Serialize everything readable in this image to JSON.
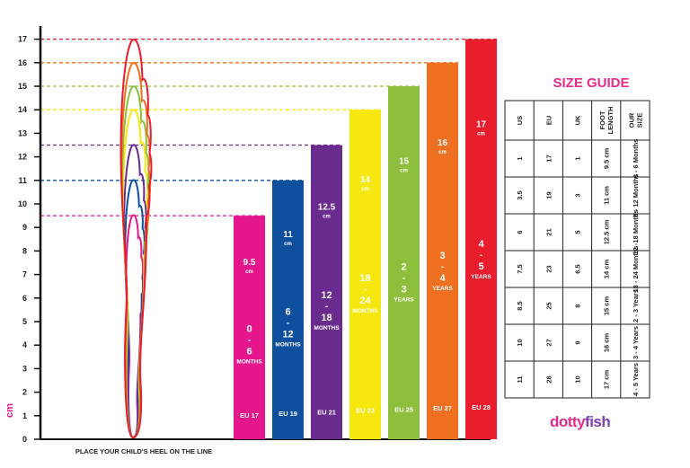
{
  "chart_data": {
    "type": "bar",
    "ylabel": "cm",
    "ylim": [
      0,
      17
    ],
    "yticks": [
      0,
      1,
      2,
      3,
      4,
      5,
      6,
      7,
      8,
      9,
      10,
      11,
      12,
      13,
      14,
      15,
      16,
      17
    ],
    "footer": "PLACE YOUR CHILD'S HEEL ON THE LINE",
    "bars": [
      {
        "value": 9.5,
        "cm_label": "9.5",
        "unit": "cm",
        "age": [
          "0",
          "-",
          "6"
        ],
        "age_unit": "MONTHS",
        "eu": "EU 17",
        "color": "#e5168b"
      },
      {
        "value": 11,
        "cm_label": "11",
        "unit": "cm",
        "age": [
          "6",
          "-",
          "12"
        ],
        "age_unit": "MONTHS",
        "eu": "EU 19",
        "color": "#0d4f9e"
      },
      {
        "value": 12.5,
        "cm_label": "12.5",
        "unit": "cm",
        "age": [
          "12",
          "-",
          "18"
        ],
        "age_unit": "MONTHS",
        "eu": "EU 21",
        "color": "#6a2b8f"
      },
      {
        "value": 14,
        "cm_label": "14",
        "unit": "cm",
        "age": [
          "18",
          "-",
          "24"
        ],
        "age_unit": "MONTHS",
        "eu": "EU 23",
        "color": "#f6e80f"
      },
      {
        "value": 15,
        "cm_label": "15",
        "unit": "cm",
        "age": [
          "2",
          "-",
          "3"
        ],
        "age_unit": "YEARS",
        "eu": "EU 25",
        "color": "#8dbf3d"
      },
      {
        "value": 16,
        "cm_label": "16",
        "unit": "cm",
        "age": [
          "3",
          "-",
          "4"
        ],
        "age_unit": "YEARS",
        "eu": "EU 27",
        "color": "#f07022"
      },
      {
        "value": 17,
        "cm_label": "17",
        "unit": "cm",
        "age": [
          "4",
          "-",
          "5"
        ],
        "age_unit": "YEARS",
        "eu": "EU 28",
        "color": "#ea1d2c"
      }
    ],
    "reference_lines": [
      {
        "value": 17,
        "color": "#ea1d2c"
      },
      {
        "value": 16,
        "color": "#f07022"
      },
      {
        "value": 15,
        "color": "#8dbf3d"
      },
      {
        "value": 14,
        "color": "#f6e80f"
      },
      {
        "value": 12.5,
        "color": "#6a2b8f"
      },
      {
        "value": 11,
        "color": "#0d4f9e"
      },
      {
        "value": 9.5,
        "color": "#e5168b"
      }
    ]
  },
  "size_guide": {
    "title": "SIZE GUIDE",
    "rows": [
      {
        "header": "US",
        "values": [
          "1",
          "3.5",
          "6",
          "7.5",
          "8.5",
          "10",
          "11"
        ]
      },
      {
        "header": "EU",
        "values": [
          "17",
          "19",
          "21",
          "23",
          "25",
          "27",
          "28"
        ]
      },
      {
        "header": "UK",
        "values": [
          "1",
          "3",
          "5",
          "6.5",
          "8",
          "9",
          "10"
        ]
      },
      {
        "header": [
          "FOOT",
          "LENGTH"
        ],
        "values": [
          "9.5 cm",
          "11 cm",
          "12.5 cm",
          "14 cm",
          "15 cm",
          "16 cm",
          "17 cm"
        ]
      },
      {
        "header": [
          "OUR",
          "SIZE"
        ],
        "values": [
          "0 - 6 Months",
          "6 - 12 Months",
          "12 -18 Months",
          "18 - 24 Months",
          "2 - 3 Years",
          "3 - 4 Years",
          "4 - 5 Years"
        ]
      }
    ]
  },
  "brand": {
    "part1": "dotty",
    "part2": "fish"
  }
}
